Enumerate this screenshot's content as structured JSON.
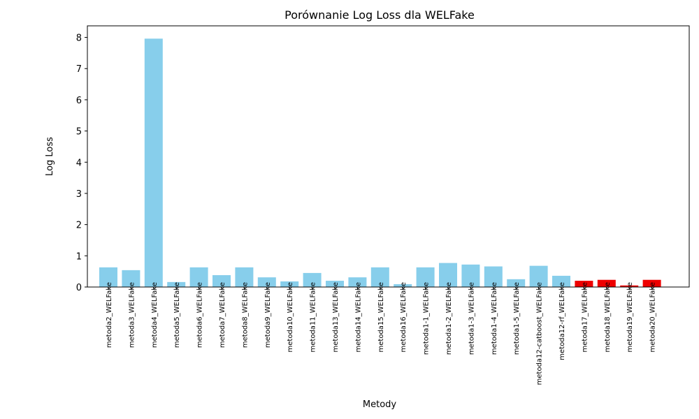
{
  "chart_data": {
    "type": "bar",
    "title": "Porównanie Log Loss dla WELFake",
    "xlabel": "Metody",
    "ylabel": "Log Loss",
    "ylim": [
      0,
      8.37
    ],
    "yticks": [
      0,
      1,
      2,
      3,
      4,
      5,
      6,
      7,
      8
    ],
    "grid": false,
    "categories": [
      "metoda2_WELFake",
      "metoda3_WELFake",
      "metoda4_WELFake",
      "metoda5_WELFake",
      "metoda6_WELFake",
      "metoda7_WELFake",
      "metoda8_WELFake",
      "metoda9_WELFake",
      "metoda10_WELFake",
      "metoda11_WELFake",
      "metoda13_WELFake",
      "metoda14_WELFake",
      "metoda15_WELFake",
      "metoda16_WELFake",
      "metoda1-1_WELFake",
      "metoda1-2_WELFake",
      "metoda1-3_WELFake",
      "metoda1-4_WELFake",
      "metoda1-5_WELFake",
      "metoda12-catboost_WELFake",
      "metoda12-rf_WELFake",
      "metoda17_WELFake",
      "metoda18_WELFake",
      "metoda19_WELFake",
      "metoda20_WELFake"
    ],
    "values": [
      0.63,
      0.54,
      7.96,
      0.16,
      0.63,
      0.38,
      0.63,
      0.31,
      0.18,
      0.45,
      0.2,
      0.31,
      0.63,
      0.09,
      0.63,
      0.77,
      0.72,
      0.66,
      0.25,
      0.68,
      0.36,
      0.2,
      0.23,
      0.05,
      0.23
    ],
    "highlight": [
      false,
      false,
      false,
      false,
      false,
      false,
      false,
      false,
      false,
      false,
      false,
      false,
      false,
      false,
      false,
      false,
      false,
      false,
      false,
      false,
      false,
      true,
      true,
      true,
      true
    ],
    "colors": {
      "default": "#87CEEB",
      "highlight": "#EE0000",
      "axis": "#000000"
    }
  }
}
